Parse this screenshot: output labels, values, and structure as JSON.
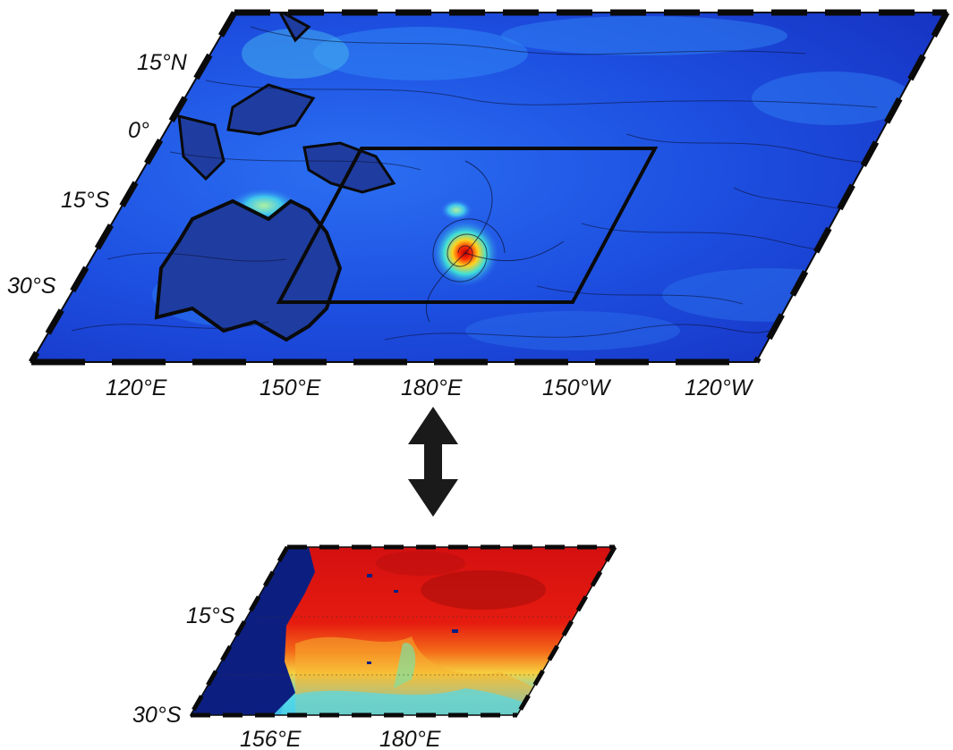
{
  "top_map": {
    "lat_labels": [
      "15°N",
      "0°",
      "15°S",
      "30°S"
    ],
    "lon_labels": [
      "120°E",
      "150°E",
      "180°E",
      "150°W",
      "120°W"
    ]
  },
  "bottom_map": {
    "lat_labels": [
      "15°S",
      "30°S"
    ],
    "lon_labels": [
      "156°E",
      "180°E"
    ]
  },
  "colors": {
    "ocean_low": "#1428c8",
    "ocean_mid": "#1e6cf0",
    "cyan": "#3fd0e8",
    "yellow": "#f0e040",
    "red": "#e01010",
    "dark_red": "#8a0a0a",
    "land_top": "#1f3da0",
    "land_bottom": "#0c1f80"
  },
  "icons": {
    "link_arrow": "double-vertical-arrow-icon"
  }
}
